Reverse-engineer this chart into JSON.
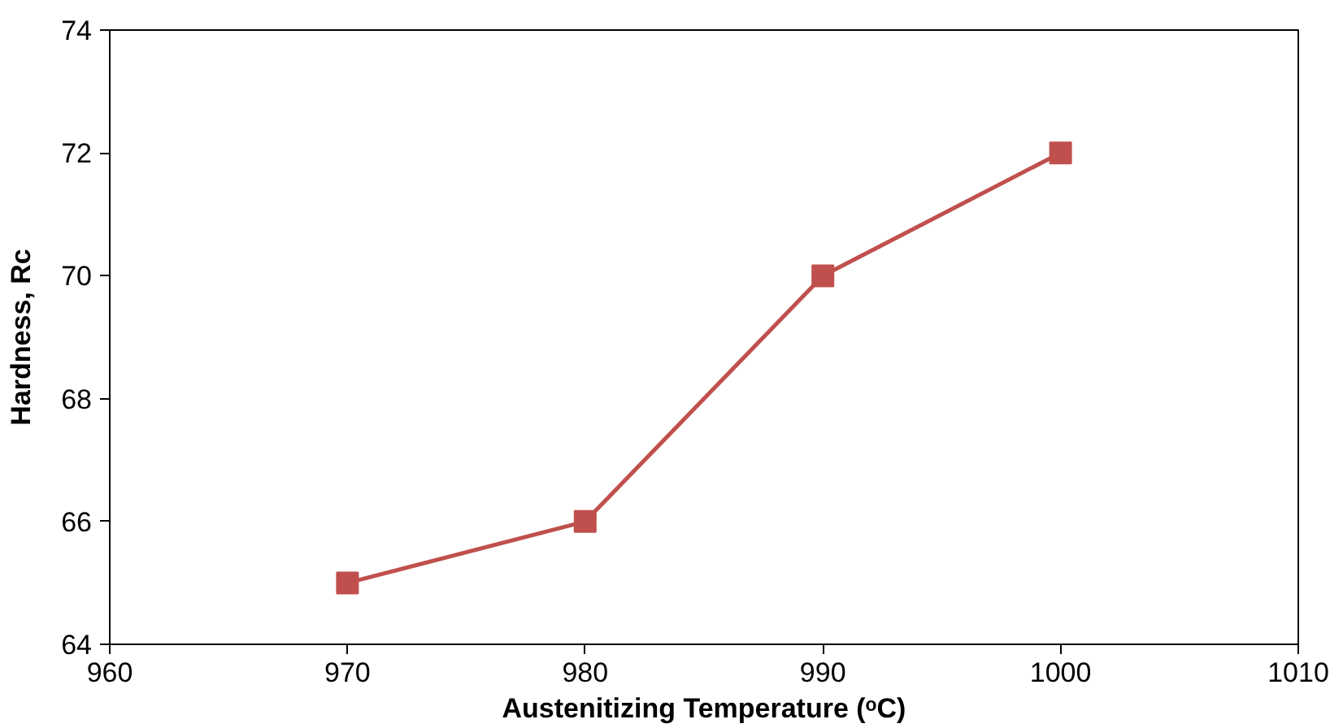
{
  "chart_data": {
    "type": "line",
    "xlabel": "Austenitizing Temperature (ᵒC)",
    "ylabel": "Hardness, Rc",
    "x": [
      970,
      980,
      990,
      1000
    ],
    "series": [
      {
        "color": "#c0504d",
        "values": [
          65,
          66,
          70,
          72
        ]
      }
    ],
    "xlim": [
      960,
      1010
    ],
    "xticks": [
      960,
      970,
      980,
      990,
      1000,
      1010
    ],
    "ylim": [
      64,
      74
    ],
    "yticks": [
      64,
      66,
      68,
      70,
      72,
      74
    ],
    "grid": false,
    "marker": "square",
    "line_style": "solid"
  }
}
